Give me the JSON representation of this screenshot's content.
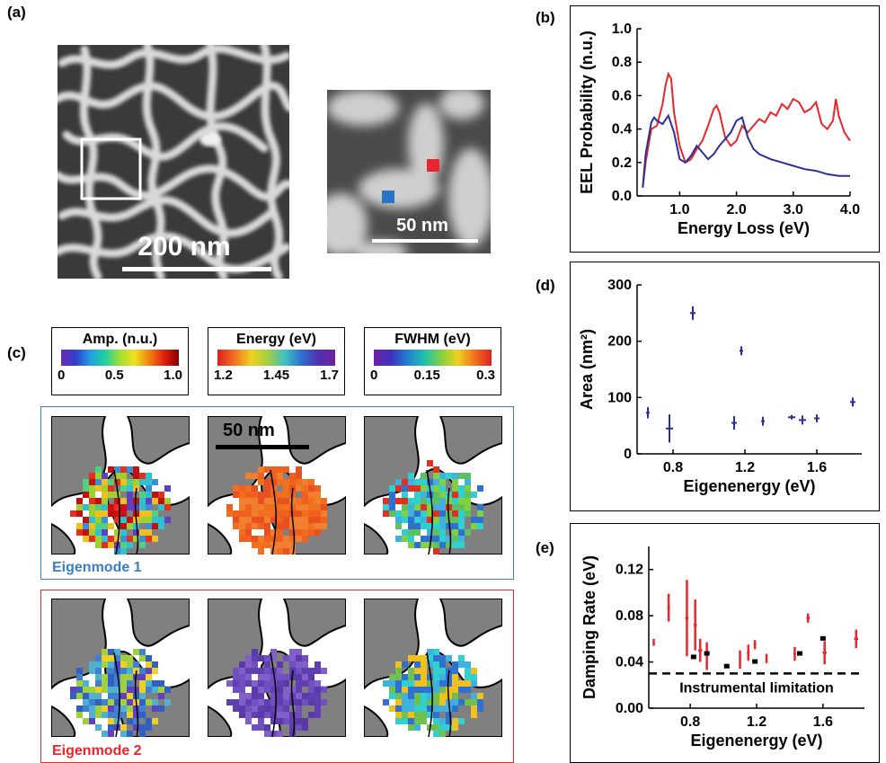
{
  "panels": {
    "a": "(a)",
    "b": "(b)",
    "c": "(c)",
    "d": "(d)",
    "e": "(e)"
  },
  "panel_a": {
    "scale_large": "200 nm",
    "scale_small": "50 nm"
  },
  "panel_c": {
    "colorbars": [
      {
        "title": "Amp. (n.u.)",
        "ticks": [
          "0",
          "0.5",
          "1.0"
        ]
      },
      {
        "title": "Energy (eV)",
        "ticks": [
          "1.2",
          "1.45",
          "1.7"
        ]
      },
      {
        "title": "FWHM (eV)",
        "ticks": [
          "0",
          "0.15",
          "0.3"
        ]
      }
    ],
    "scale_bar": "50 nm",
    "mode1": "Eigenmode 1",
    "mode2": "Eigenmode 2"
  },
  "colors": {
    "red": "#e8262b",
    "blue": "#2b2f9a",
    "mode1_frame": "#3a7fc0",
    "mode2_frame": "#c8352f",
    "particle_gray": "#808080"
  },
  "chart_data": [
    {
      "id": "b",
      "type": "line",
      "xlabel": "Energy Loss (eV)",
      "ylabel": "EEL Probability (n.u.)",
      "xlim": [
        0.25,
        4.0
      ],
      "ylim": [
        0.0,
        1.0
      ],
      "xticks": [
        "1.0",
        "2.0",
        "3.0",
        "4.0"
      ],
      "yticks": [
        "0.0",
        "0.2",
        "0.4",
        "0.6",
        "0.8",
        "1.0"
      ],
      "series": [
        {
          "color": "#e8262b",
          "x": [
            0.35,
            0.4,
            0.5,
            0.6,
            0.7,
            0.75,
            0.8,
            0.85,
            0.9,
            1.0,
            1.1,
            1.2,
            1.3,
            1.4,
            1.5,
            1.6,
            1.65,
            1.7,
            1.8,
            1.9,
            2.0,
            2.1,
            2.2,
            2.3,
            2.4,
            2.5,
            2.6,
            2.7,
            2.8,
            2.9,
            3.0,
            3.1,
            3.2,
            3.3,
            3.4,
            3.5,
            3.6,
            3.7,
            3.75,
            3.8,
            3.9,
            4.0
          ],
          "y": [
            0.05,
            0.2,
            0.4,
            0.42,
            0.55,
            0.66,
            0.73,
            0.7,
            0.5,
            0.3,
            0.2,
            0.22,
            0.28,
            0.33,
            0.42,
            0.52,
            0.54,
            0.5,
            0.35,
            0.3,
            0.33,
            0.42,
            0.38,
            0.42,
            0.46,
            0.44,
            0.5,
            0.48,
            0.55,
            0.52,
            0.58,
            0.56,
            0.5,
            0.52,
            0.56,
            0.43,
            0.4,
            0.45,
            0.58,
            0.48,
            0.38,
            0.33
          ]
        },
        {
          "color": "#2b2f9a",
          "x": [
            0.35,
            0.4,
            0.5,
            0.55,
            0.6,
            0.7,
            0.8,
            0.9,
            1.0,
            1.1,
            1.2,
            1.3,
            1.4,
            1.5,
            1.6,
            1.7,
            1.8,
            1.9,
            2.0,
            2.1,
            2.2,
            2.3,
            2.4,
            2.6,
            2.8,
            3.0,
            3.2,
            3.4,
            3.6,
            3.8,
            4.0
          ],
          "y": [
            0.05,
            0.25,
            0.44,
            0.47,
            0.45,
            0.43,
            0.48,
            0.38,
            0.22,
            0.2,
            0.24,
            0.3,
            0.26,
            0.22,
            0.25,
            0.3,
            0.34,
            0.38,
            0.45,
            0.47,
            0.35,
            0.28,
            0.25,
            0.22,
            0.2,
            0.18,
            0.16,
            0.15,
            0.13,
            0.12,
            0.12
          ]
        }
      ]
    },
    {
      "id": "d",
      "type": "scatter",
      "xlabel": "Eigenenergy (eV)",
      "ylabel": "Area (nm²)",
      "xlim": [
        0.6,
        1.85
      ],
      "ylim": [
        0,
        300
      ],
      "xticks": [
        "0.8",
        "1.2",
        "1.6"
      ],
      "yticks": [
        "0",
        "100",
        "200",
        "300"
      ],
      "series": [
        {
          "color": "#2b2f9a",
          "points": [
            [
              0.66,
              73,
              0.01,
              10
            ],
            [
              0.78,
              45,
              0.02,
              25
            ],
            [
              0.91,
              250,
              0.015,
              12
            ],
            [
              1.14,
              55,
              0.015,
              12
            ],
            [
              1.18,
              183,
              0.01,
              8
            ],
            [
              1.3,
              58,
              0.01,
              8
            ],
            [
              1.46,
              65,
              0.02,
              4
            ],
            [
              1.52,
              60,
              0.02,
              8
            ],
            [
              1.6,
              63,
              0.015,
              7
            ],
            [
              1.8,
              92,
              0.015,
              8
            ]
          ]
        }
      ]
    },
    {
      "id": "e",
      "type": "scatter",
      "xlabel": "Eigenenergy (eV)",
      "ylabel": "Damping Rate (eV)",
      "xlim": [
        0.55,
        1.85
      ],
      "ylim": [
        0.0,
        0.14
      ],
      "xticks": [
        "0.8",
        "1.2",
        "1.6"
      ],
      "yticks": [
        "0.00",
        "0.04",
        "0.08",
        "0.12"
      ],
      "hline": {
        "y": 0.03,
        "label": "Instrumental limitation"
      },
      "series": [
        {
          "color": "#e8262b",
          "points": [
            [
              0.58,
              0.057,
              0.005,
              0.003
            ],
            [
              0.67,
              0.087,
              0.008,
              0.012
            ],
            [
              0.78,
              0.078,
              0.01,
              0.033
            ],
            [
              0.83,
              0.072,
              0.01,
              0.022
            ],
            [
              0.86,
              0.05,
              0.012,
              0.01
            ],
            [
              0.9,
              0.045,
              0.005,
              0.012
            ],
            [
              1.1,
              0.042,
              0.005,
              0.008
            ],
            [
              1.15,
              0.048,
              0.008,
              0.007
            ],
            [
              1.19,
              0.055,
              0.008,
              0.004
            ],
            [
              1.26,
              0.043,
              0.005,
              0.004
            ],
            [
              1.43,
              0.047,
              0.008,
              0.006
            ],
            [
              1.51,
              0.078,
              0.01,
              0.004
            ],
            [
              1.61,
              0.048,
              0.012,
              0.01
            ],
            [
              1.8,
              0.06,
              0.012,
              0.008
            ]
          ]
        },
        {
          "color": "#000000",
          "points": [
            [
              0.82,
              0.044,
              0.005,
              0.0
            ],
            [
              0.9,
              0.047,
              0.005,
              0.0
            ],
            [
              1.02,
              0.036,
              0.005,
              0.0
            ],
            [
              1.19,
              0.04,
              0.005,
              0.0
            ],
            [
              1.46,
              0.047,
              0.005,
              0.0
            ],
            [
              1.6,
              0.06,
              0.005,
              0.0
            ]
          ]
        }
      ]
    }
  ]
}
